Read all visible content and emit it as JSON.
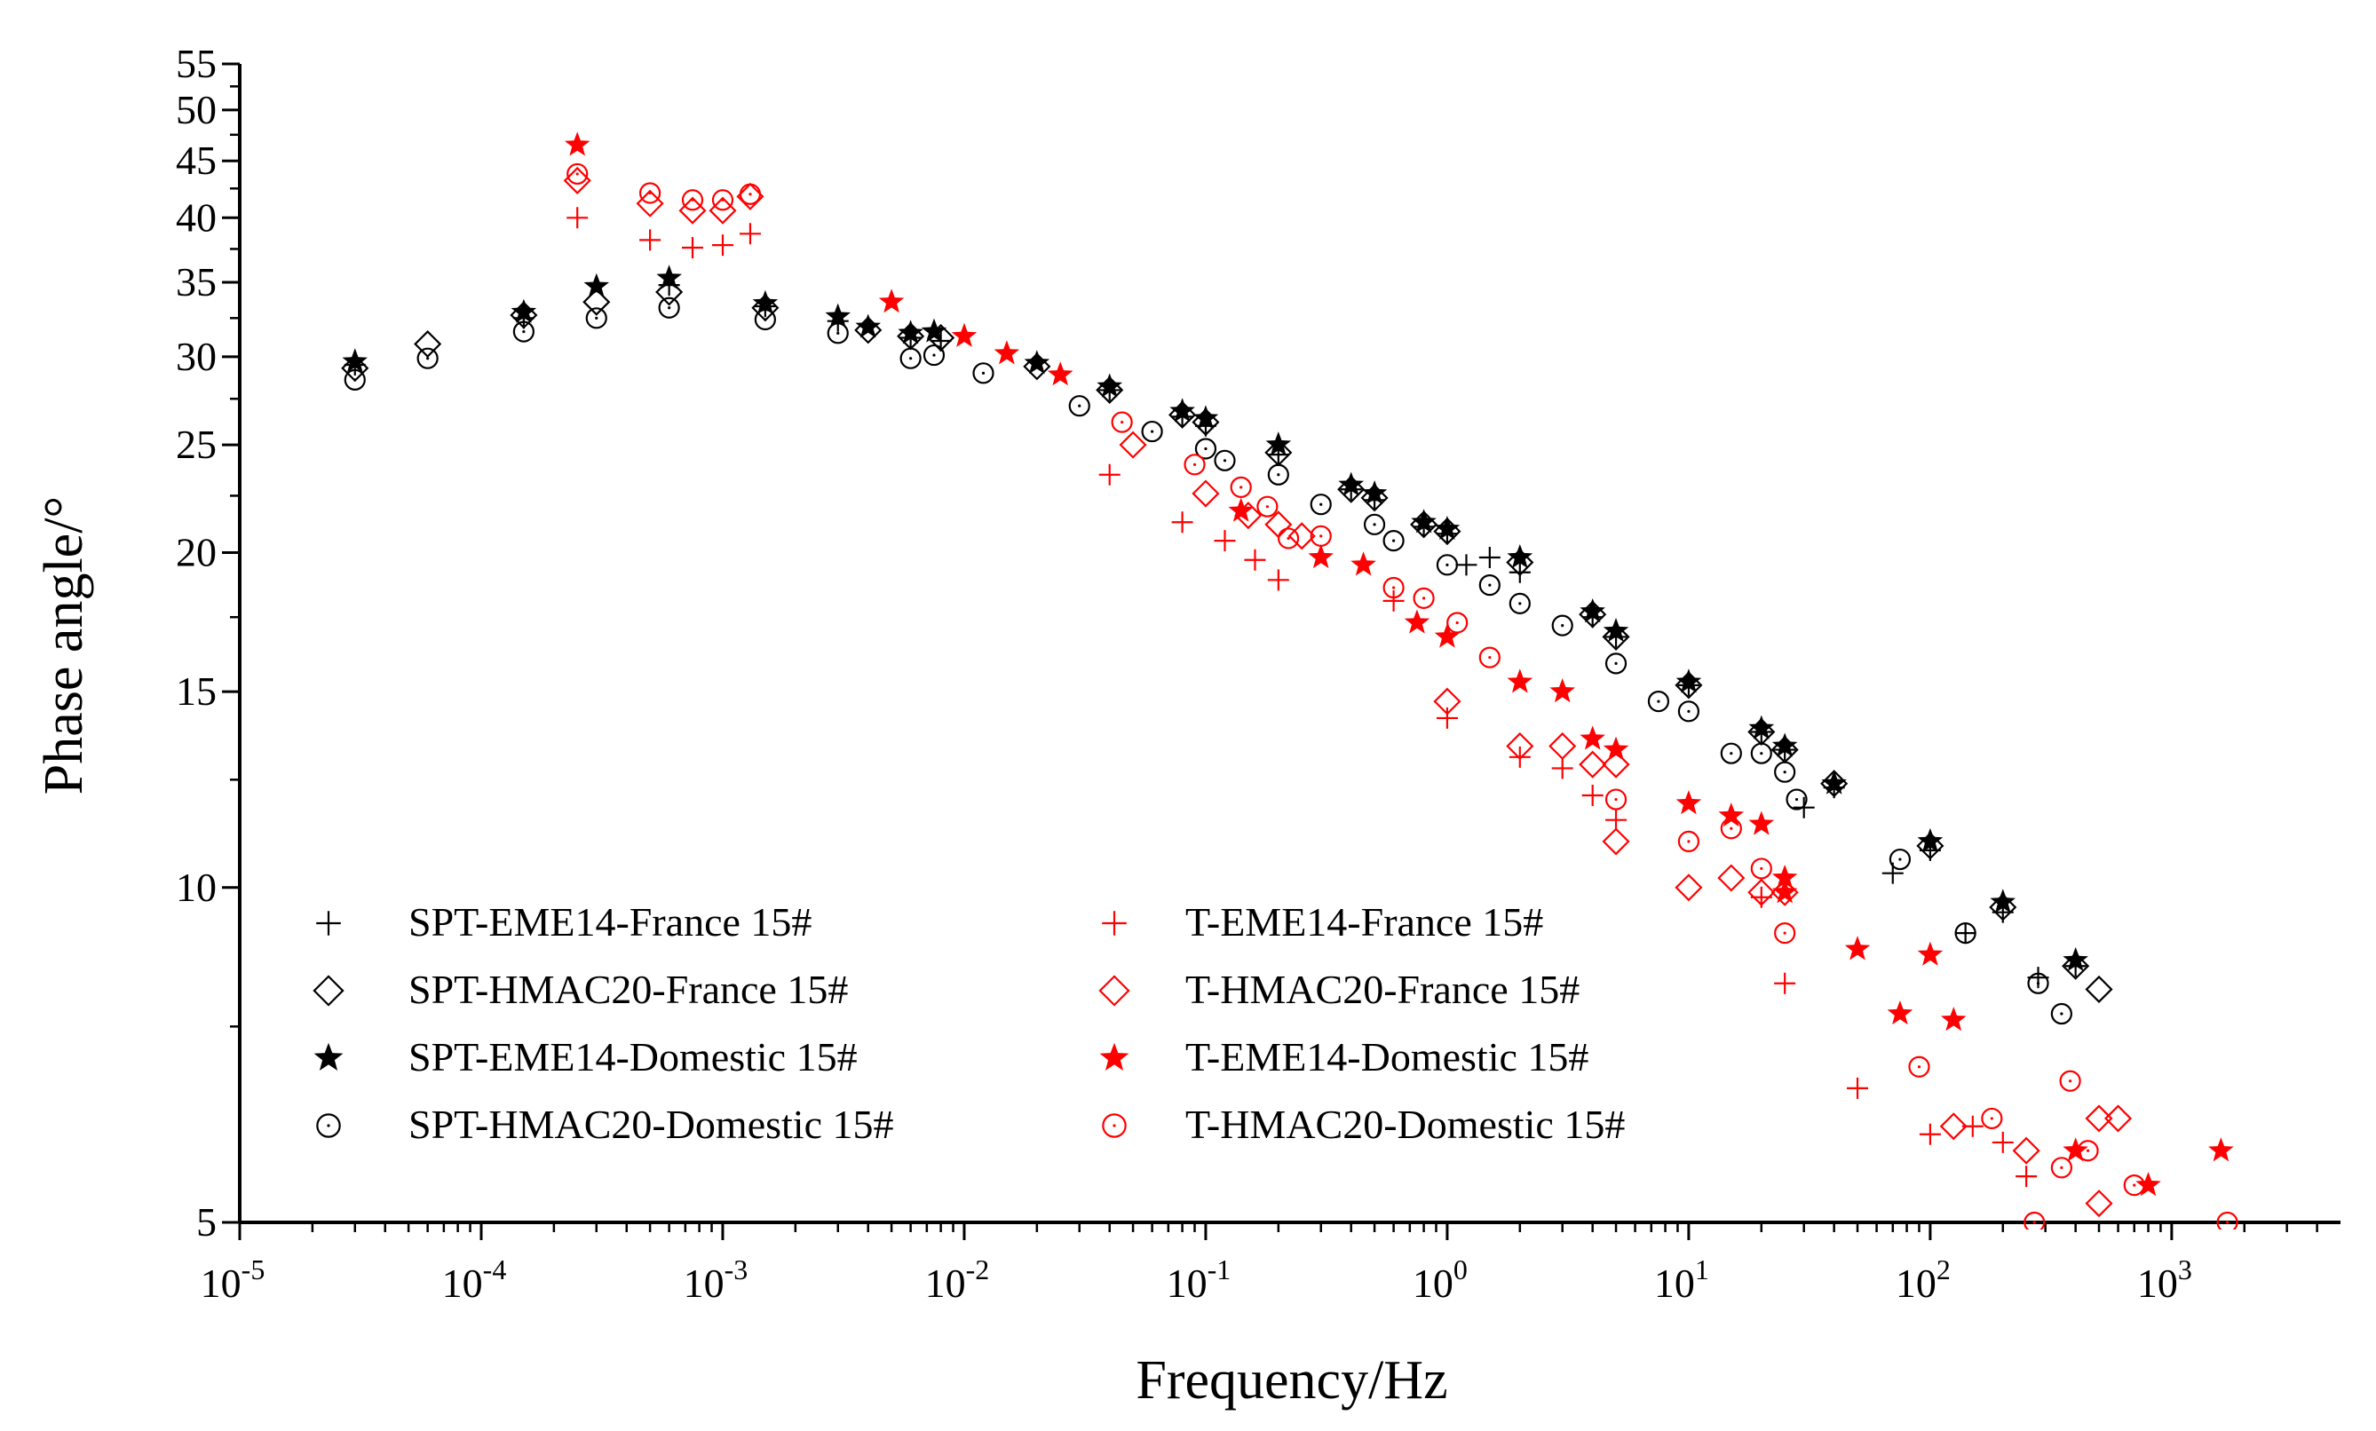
{
  "chart_data": {
    "type": "scatter",
    "title": "",
    "xlabel": "Frequency/Hz",
    "ylabel": "Phase angle/°",
    "xscale": "log",
    "yscale": "log",
    "xlim": [
      1e-05,
      5000
    ],
    "ylim": [
      5,
      55
    ],
    "x_ticks": [
      {
        "value": 1e-05,
        "base": "10",
        "exp": "-5"
      },
      {
        "value": 0.0001,
        "base": "10",
        "exp": "-4"
      },
      {
        "value": 0.001,
        "base": "10",
        "exp": "-3"
      },
      {
        "value": 0.01,
        "base": "10",
        "exp": "-2"
      },
      {
        "value": 0.1,
        "base": "10",
        "exp": "-1"
      },
      {
        "value": 1,
        "base": "10",
        "exp": "0"
      },
      {
        "value": 10,
        "base": "10",
        "exp": "1"
      },
      {
        "value": 100,
        "base": "10",
        "exp": "2"
      },
      {
        "value": 1000,
        "base": "10",
        "exp": "3"
      }
    ],
    "y_ticks": [
      {
        "value": 5,
        "label": "5"
      },
      {
        "value": 10,
        "label": "10"
      },
      {
        "value": 15,
        "label": "15"
      },
      {
        "value": 20,
        "label": "20"
      },
      {
        "value": 25,
        "label": "25"
      },
      {
        "value": 30,
        "label": "30"
      },
      {
        "value": 35,
        "label": "35"
      },
      {
        "value": 40,
        "label": "40"
      },
      {
        "value": 45,
        "label": "45"
      },
      {
        "value": 50,
        "label": "50"
      },
      {
        "value": 55,
        "label": "55"
      }
    ],
    "legend_position": "bottom-left, two columns",
    "series": [
      {
        "name": "SPT-EME14-France 15#",
        "marker": "plus",
        "color": "#000000",
        "points": [
          [
            3e-05,
            29.5
          ],
          [
            0.00015,
            32.5
          ],
          [
            0.0006,
            34.8
          ],
          [
            0.0015,
            33.3
          ],
          [
            0.003,
            32.3
          ],
          [
            0.006,
            31.2
          ],
          [
            0.008,
            31.0
          ],
          [
            0.04,
            28.0
          ],
          [
            0.08,
            26.5
          ],
          [
            0.1,
            26.0
          ],
          [
            0.2,
            24.5
          ],
          [
            0.4,
            22.8
          ],
          [
            0.5,
            22.3
          ],
          [
            0.8,
            21.1
          ],
          [
            1,
            20.8
          ],
          [
            1.2,
            19.5
          ],
          [
            1.5,
            19.8
          ],
          [
            2,
            19.2
          ],
          [
            4,
            17.5
          ],
          [
            5,
            16.8
          ],
          [
            10,
            15.2
          ],
          [
            20,
            13.8
          ],
          [
            25,
            13.3
          ],
          [
            30,
            11.8
          ],
          [
            40,
            12.3
          ],
          [
            70,
            10.3
          ],
          [
            100,
            10.8
          ],
          [
            140,
            9.1
          ],
          [
            200,
            9.5
          ],
          [
            280,
            8.3
          ],
          [
            400,
            8.5
          ]
        ]
      },
      {
        "name": "SPT-HMAC20-France 15#",
        "marker": "diamond",
        "color": "#000000",
        "points": [
          [
            3e-05,
            29.3
          ],
          [
            6e-05,
            30.8
          ],
          [
            0.00015,
            32.7
          ],
          [
            0.0003,
            33.6
          ],
          [
            0.0006,
            34.3
          ],
          [
            0.0015,
            33.2
          ],
          [
            0.004,
            31.7
          ],
          [
            0.006,
            31.3
          ],
          [
            0.008,
            31.2
          ],
          [
            0.02,
            29.4
          ],
          [
            0.04,
            28.0
          ],
          [
            0.08,
            26.6
          ],
          [
            0.1,
            26.2
          ],
          [
            0.2,
            24.6
          ],
          [
            0.4,
            22.8
          ],
          [
            0.5,
            22.4
          ],
          [
            0.8,
            21.2
          ],
          [
            1,
            20.9
          ],
          [
            2,
            19.6
          ],
          [
            4,
            17.6
          ],
          [
            5,
            16.8
          ],
          [
            10,
            15.2
          ],
          [
            20,
            13.8
          ],
          [
            25,
            13.3
          ],
          [
            40,
            12.4
          ],
          [
            100,
            10.9
          ],
          [
            200,
            9.6
          ],
          [
            400,
            8.5
          ],
          [
            500,
            8.1
          ]
        ]
      },
      {
        "name": "SPT-EME14-Domestic 15#",
        "marker": "star",
        "color": "#000000",
        "points": [
          [
            3e-05,
            29.7
          ],
          [
            0.00015,
            32.9
          ],
          [
            0.0003,
            34.7
          ],
          [
            0.0006,
            35.3
          ],
          [
            0.0015,
            33.5
          ],
          [
            0.003,
            32.6
          ],
          [
            0.004,
            31.9
          ],
          [
            0.006,
            31.5
          ],
          [
            0.0075,
            31.6
          ],
          [
            0.02,
            29.6
          ],
          [
            0.04,
            28.2
          ],
          [
            0.08,
            26.8
          ],
          [
            0.1,
            26.4
          ],
          [
            0.2,
            25.0
          ],
          [
            0.4,
            23.0
          ],
          [
            0.5,
            22.6
          ],
          [
            0.8,
            21.3
          ],
          [
            1,
            21.0
          ],
          [
            2,
            19.8
          ],
          [
            4,
            17.7
          ],
          [
            5,
            17.0
          ],
          [
            10,
            15.3
          ],
          [
            20,
            13.9
          ],
          [
            25,
            13.4
          ],
          [
            40,
            12.4
          ],
          [
            100,
            11.0
          ],
          [
            200,
            9.7
          ],
          [
            400,
            8.6
          ]
        ]
      },
      {
        "name": "SPT-HMAC20-Domestic 15#",
        "marker": "circle",
        "color": "#000000",
        "points": [
          [
            3e-05,
            28.6
          ],
          [
            6e-05,
            29.9
          ],
          [
            0.00015,
            31.6
          ],
          [
            0.0003,
            32.5
          ],
          [
            0.0006,
            33.2
          ],
          [
            0.0015,
            32.4
          ],
          [
            0.003,
            31.5
          ],
          [
            0.006,
            29.9
          ],
          [
            0.0075,
            30.1
          ],
          [
            0.012,
            29.0
          ],
          [
            0.03,
            27.1
          ],
          [
            0.06,
            25.7
          ],
          [
            0.1,
            24.8
          ],
          [
            0.12,
            24.2
          ],
          [
            0.2,
            23.5
          ],
          [
            0.3,
            22.1
          ],
          [
            0.5,
            21.2
          ],
          [
            0.6,
            20.5
          ],
          [
            1,
            19.5
          ],
          [
            1.5,
            18.7
          ],
          [
            2,
            18.0
          ],
          [
            3,
            17.2
          ],
          [
            5,
            15.9
          ],
          [
            7.5,
            14.7
          ],
          [
            10,
            14.4
          ],
          [
            15,
            13.2
          ],
          [
            20,
            13.2
          ],
          [
            25,
            12.7
          ],
          [
            28,
            12.0
          ],
          [
            75,
            10.6
          ],
          [
            140,
            9.1
          ],
          [
            280,
            8.2
          ],
          [
            350,
            7.7
          ]
        ]
      },
      {
        "name": "T-EME14-France 15#",
        "marker": "plus",
        "color": "#ff0000",
        "points": [
          [
            0.00025,
            40.0
          ],
          [
            0.0005,
            38.2
          ],
          [
            0.00075,
            37.6
          ],
          [
            0.001,
            37.8
          ],
          [
            0.0013,
            38.7
          ],
          [
            0.04,
            23.5
          ],
          [
            0.08,
            21.3
          ],
          [
            0.12,
            20.5
          ],
          [
            0.16,
            19.7
          ],
          [
            0.2,
            18.9
          ],
          [
            0.6,
            18.1
          ],
          [
            1,
            14.2
          ],
          [
            2,
            13.1
          ],
          [
            3,
            12.8
          ],
          [
            4,
            12.1
          ],
          [
            5,
            11.5
          ],
          [
            20,
            9.8
          ],
          [
            25,
            8.2
          ],
          [
            50,
            6.6
          ],
          [
            100,
            6.0
          ],
          [
            150,
            6.1
          ],
          [
            200,
            5.9
          ],
          [
            250,
            5.5
          ]
        ]
      },
      {
        "name": "T-HMAC20-France 15#",
        "marker": "diamond",
        "color": "#ff0000",
        "points": [
          [
            0.00025,
            43.2
          ],
          [
            0.0005,
            41.2
          ],
          [
            0.00075,
            40.6
          ],
          [
            0.001,
            40.6
          ],
          [
            0.0013,
            41.8
          ],
          [
            0.05,
            25.0
          ],
          [
            0.1,
            22.6
          ],
          [
            0.15,
            21.6
          ],
          [
            0.2,
            21.2
          ],
          [
            0.25,
            20.7
          ],
          [
            1,
            14.7
          ],
          [
            2,
            13.4
          ],
          [
            3,
            13.4
          ],
          [
            4,
            12.9
          ],
          [
            5,
            12.9
          ],
          [
            5,
            11.0
          ],
          [
            10,
            10.0
          ],
          [
            15,
            10.2
          ],
          [
            20,
            9.9
          ],
          [
            25,
            9.9
          ],
          [
            125,
            6.1
          ],
          [
            250,
            5.8
          ],
          [
            500,
            5.2
          ],
          [
            500,
            6.2
          ],
          [
            600,
            6.2
          ]
        ]
      },
      {
        "name": "T-EME14-Domestic 15#",
        "marker": "star",
        "color": "#ff0000",
        "points": [
          [
            0.00025,
            46.5
          ],
          [
            0.005,
            33.6
          ],
          [
            0.01,
            31.3
          ],
          [
            0.015,
            30.2
          ],
          [
            0.025,
            28.9
          ],
          [
            0.14,
            21.8
          ],
          [
            0.3,
            19.8
          ],
          [
            0.45,
            19.5
          ],
          [
            0.75,
            17.3
          ],
          [
            1,
            16.8
          ],
          [
            2,
            15.3
          ],
          [
            3,
            15.0
          ],
          [
            4,
            13.6
          ],
          [
            5,
            13.3
          ],
          [
            10,
            11.9
          ],
          [
            15,
            11.6
          ],
          [
            20,
            11.4
          ],
          [
            25,
            10.2
          ],
          [
            25,
            9.9
          ],
          [
            50,
            8.8
          ],
          [
            75,
            7.7
          ],
          [
            100,
            8.7
          ],
          [
            125,
            7.6
          ],
          [
            400,
            5.8
          ],
          [
            800,
            5.4
          ],
          [
            1600,
            5.8
          ]
        ]
      },
      {
        "name": "T-HMAC20-Domestic 15#",
        "marker": "circle",
        "color": "#ff0000",
        "points": [
          [
            0.00025,
            43.8
          ],
          [
            0.0005,
            42.1
          ],
          [
            0.00075,
            41.5
          ],
          [
            0.001,
            41.5
          ],
          [
            0.0013,
            42.0
          ],
          [
            0.045,
            26.2
          ],
          [
            0.09,
            24.0
          ],
          [
            0.14,
            22.9
          ],
          [
            0.18,
            22.0
          ],
          [
            0.22,
            20.6
          ],
          [
            0.3,
            20.7
          ],
          [
            0.6,
            18.6
          ],
          [
            0.8,
            18.2
          ],
          [
            1.1,
            17.3
          ],
          [
            1.5,
            16.1
          ],
          [
            5,
            12.0
          ],
          [
            10,
            11.0
          ],
          [
            15,
            11.3
          ],
          [
            20,
            10.4
          ],
          [
            25,
            9.1
          ],
          [
            90,
            6.9
          ],
          [
            180,
            6.2
          ],
          [
            350,
            5.6
          ],
          [
            380,
            6.7
          ],
          [
            450,
            5.8
          ],
          [
            700,
            5.4
          ],
          [
            1700,
            5.0
          ],
          [
            270,
            5.0
          ]
        ]
      }
    ]
  }
}
